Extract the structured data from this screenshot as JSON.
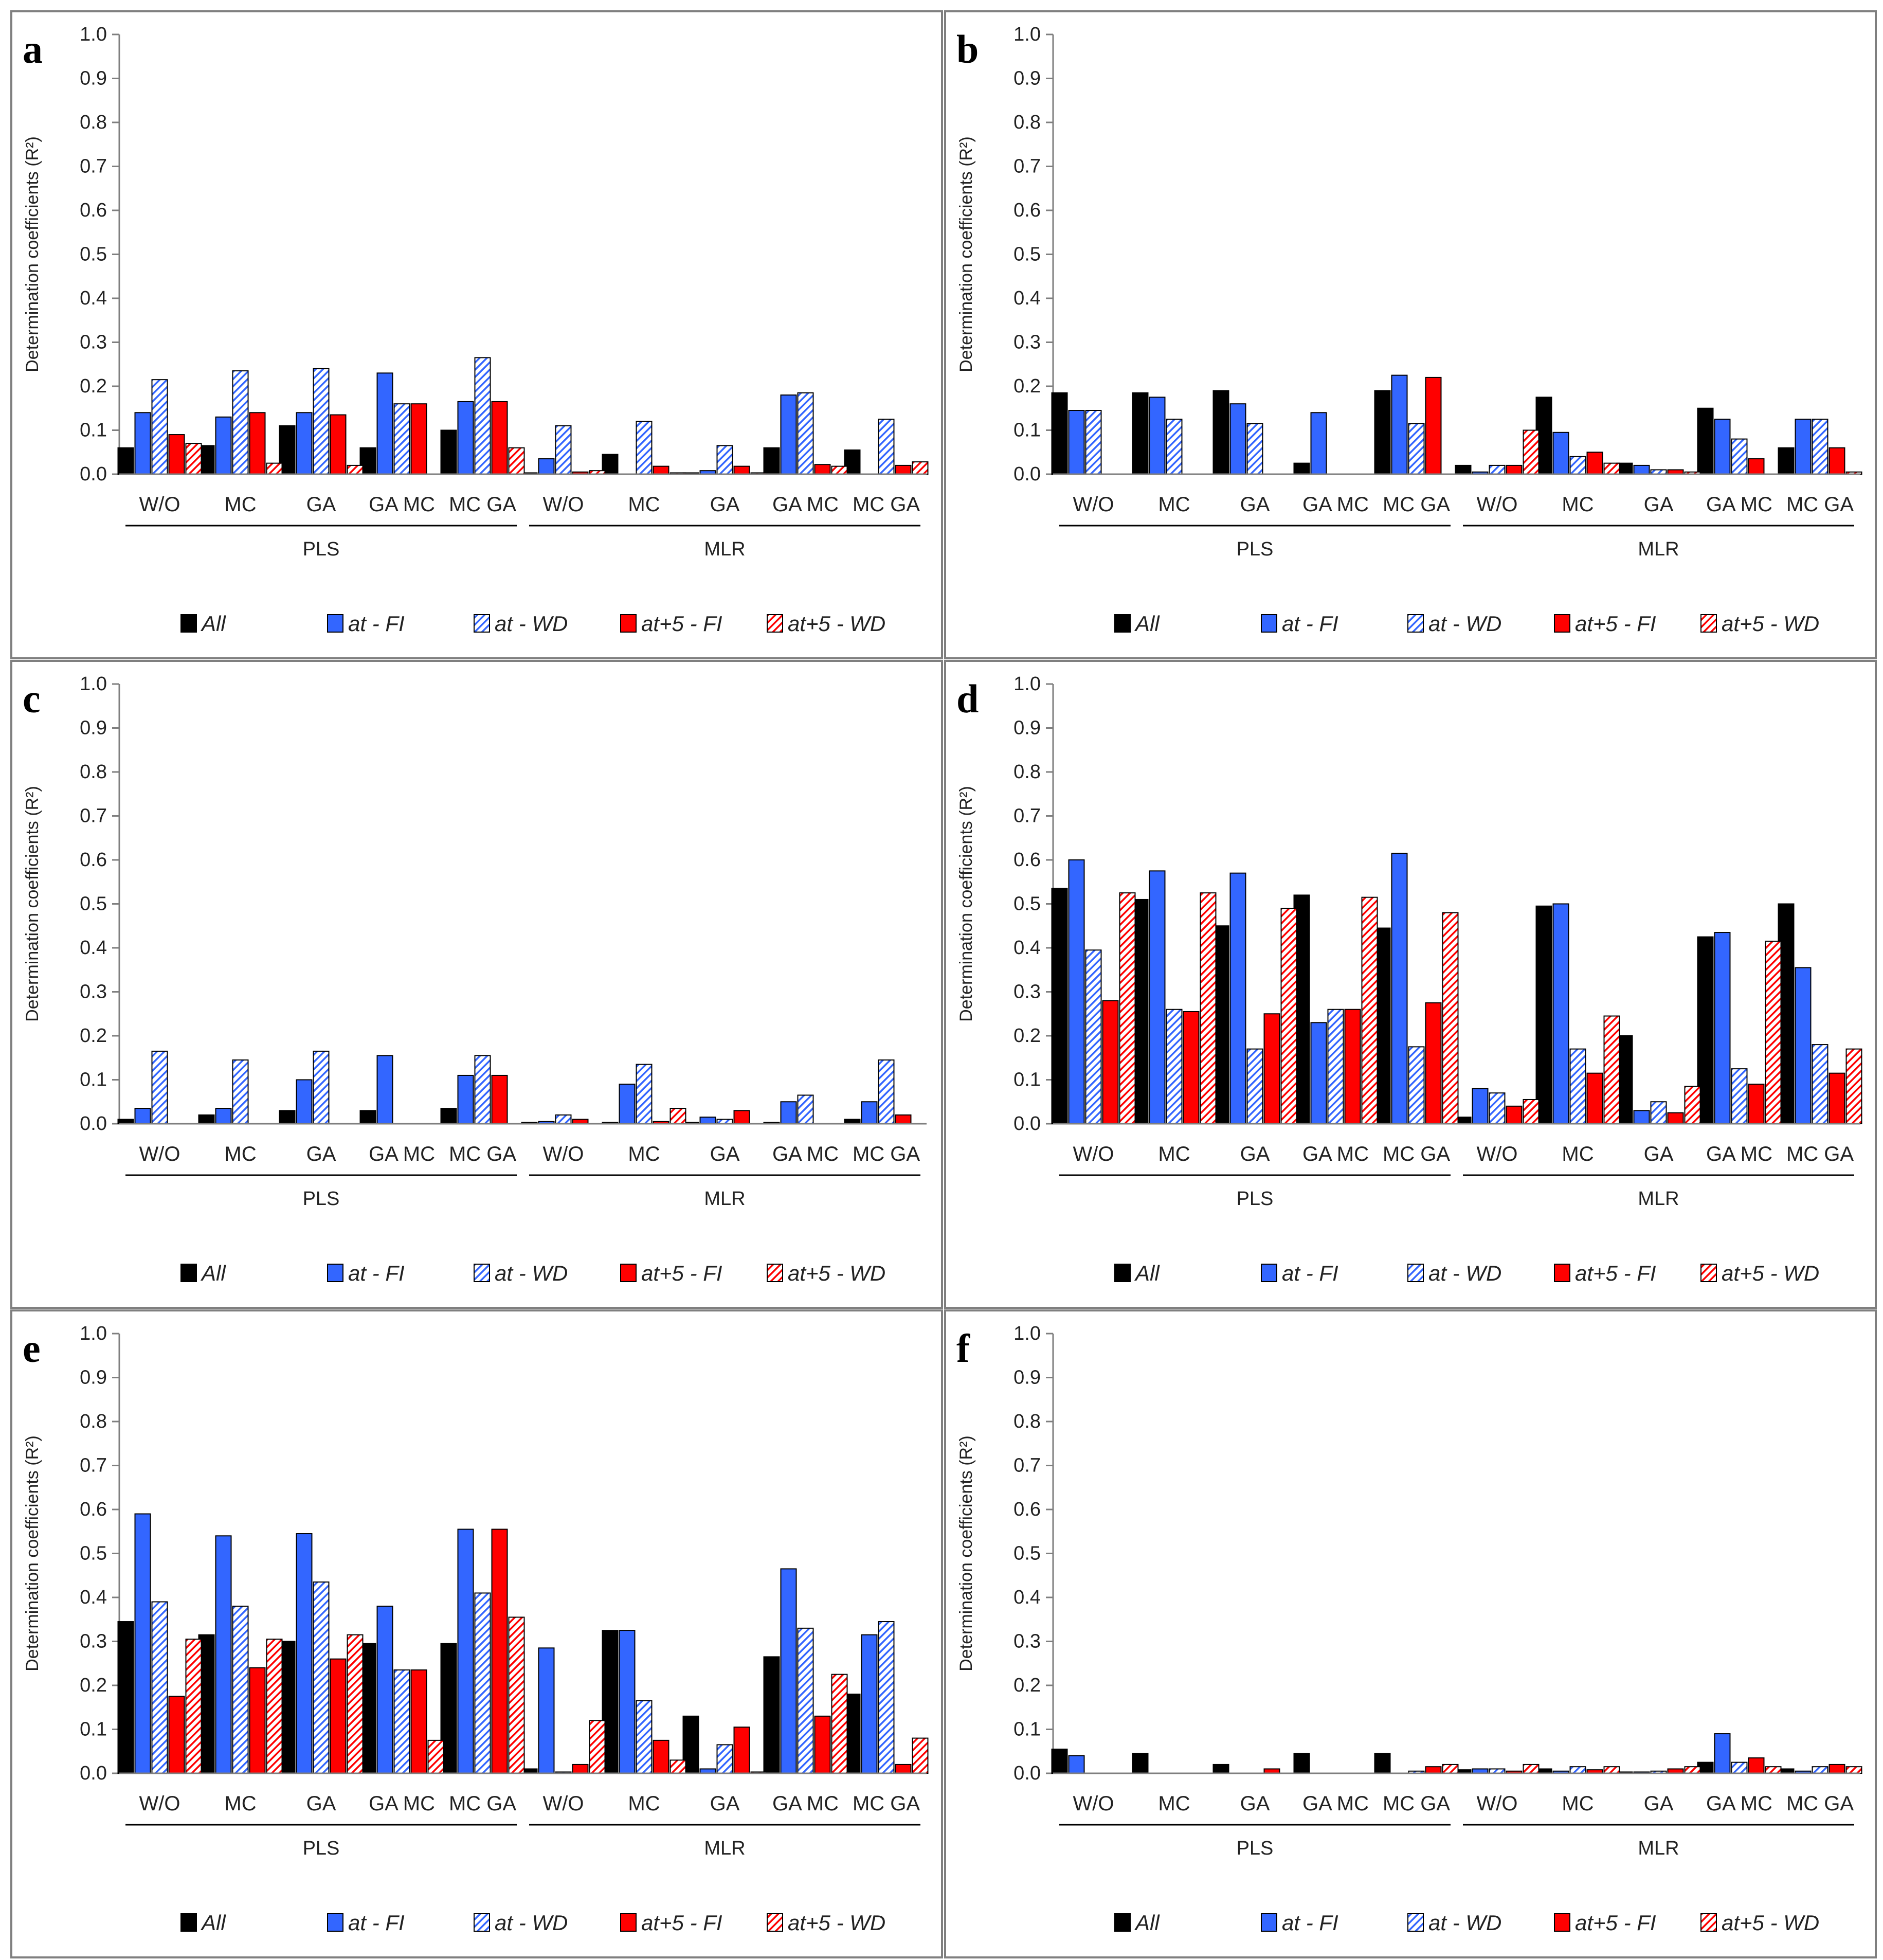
{
  "figure": {
    "colors": {
      "All": "#000000",
      "at - FI": "#3366ff",
      "at - WD": "#3366ff",
      "at+5 - FI": "#ff0000",
      "at+5 - WD": "#ff0000",
      "frame": "#7f7f7f",
      "axis": "#7f7f7f"
    }
  },
  "chart_data": [
    {
      "type": "bar",
      "panel": "a",
      "ylabel": "Determination coefficients (R²)",
      "ylim": [
        0,
        1.0
      ],
      "yticks": [
        "0.0",
        "0.1",
        "0.2",
        "0.3",
        "0.4",
        "0.5",
        "0.6",
        "0.7",
        "0.8",
        "0.9",
        "1.0"
      ],
      "categories": [
        "W/O",
        "MC",
        "GA",
        "GA MC",
        "MC GA",
        "W/O",
        "MC",
        "GA",
        "GA MC",
        "MC GA"
      ],
      "groups": [
        {
          "name": "PLS",
          "count": 5
        },
        {
          "name": "MLR",
          "count": 5
        }
      ],
      "series": [
        {
          "name": "All",
          "pattern": "solid",
          "values": [
            0.06,
            0.065,
            0.11,
            0.06,
            0.1,
            0.003,
            0.045,
            0.003,
            0.06,
            0.055
          ]
        },
        {
          "name": "at - FI",
          "pattern": "solid",
          "values": [
            0.14,
            0.13,
            0.14,
            0.23,
            0.165,
            0.035,
            0.0,
            0.008,
            0.18,
            0.0
          ]
        },
        {
          "name": "at - WD",
          "pattern": "hatch",
          "values": [
            0.215,
            0.235,
            0.24,
            0.16,
            0.265,
            0.11,
            0.12,
            0.065,
            0.185,
            0.125
          ]
        },
        {
          "name": "at+5 - FI",
          "pattern": "solid",
          "values": [
            0.09,
            0.14,
            0.135,
            0.16,
            0.165,
            0.005,
            0.018,
            0.018,
            0.022,
            0.02
          ]
        },
        {
          "name": "at+5 - WD",
          "pattern": "hatch",
          "values": [
            0.07,
            0.025,
            0.02,
            0.0,
            0.06,
            0.008,
            0.003,
            0.003,
            0.018,
            0.028
          ]
        }
      ]
    },
    {
      "type": "bar",
      "panel": "b",
      "ylabel": "Determination coefficients (R²)",
      "ylim": [
        0,
        1.0
      ],
      "yticks": [
        "0.0",
        "0.1",
        "0.2",
        "0.3",
        "0.4",
        "0.5",
        "0.6",
        "0.7",
        "0.8",
        "0.9",
        "1.0"
      ],
      "categories": [
        "W/O",
        "MC",
        "GA",
        "GA MC",
        "MC GA",
        "W/O",
        "MC",
        "GA",
        "GA MC",
        "MC GA"
      ],
      "groups": [
        {
          "name": "PLS",
          "count": 5
        },
        {
          "name": "MLR",
          "count": 5
        }
      ],
      "series": [
        {
          "name": "All",
          "pattern": "solid",
          "values": [
            0.185,
            0.185,
            0.19,
            0.025,
            0.19,
            0.02,
            0.175,
            0.025,
            0.15,
            0.06
          ]
        },
        {
          "name": "at - FI",
          "pattern": "solid",
          "values": [
            0.145,
            0.175,
            0.16,
            0.14,
            0.225,
            0.005,
            0.095,
            0.02,
            0.125,
            0.125
          ]
        },
        {
          "name": "at - WD",
          "pattern": "hatch",
          "values": [
            0.145,
            0.125,
            0.115,
            0.0,
            0.115,
            0.02,
            0.04,
            0.01,
            0.08,
            0.125
          ]
        },
        {
          "name": "at+5 - FI",
          "pattern": "solid",
          "values": [
            0.0,
            0.0,
            0.0,
            0.0,
            0.22,
            0.02,
            0.05,
            0.01,
            0.035,
            0.06
          ]
        },
        {
          "name": "at+5 - WD",
          "pattern": "hatch",
          "values": [
            0.0,
            0.0,
            0.0,
            0.0,
            0.0,
            0.1,
            0.025,
            0.005,
            0.0,
            0.005
          ]
        }
      ]
    },
    {
      "type": "bar",
      "panel": "c",
      "ylabel": "Determination coefficients (R²)",
      "ylim": [
        0,
        1.0
      ],
      "yticks": [
        "0.0",
        "0.1",
        "0.2",
        "0.3",
        "0.4",
        "0.5",
        "0.6",
        "0.7",
        "0.8",
        "0.9",
        "1.0"
      ],
      "categories": [
        "W/O",
        "MC",
        "GA",
        "GA MC",
        "MC GA",
        "W/O",
        "MC",
        "GA",
        "GA MC",
        "MC GA"
      ],
      "groups": [
        {
          "name": "PLS",
          "count": 5
        },
        {
          "name": "MLR",
          "count": 5
        }
      ],
      "series": [
        {
          "name": "All",
          "pattern": "solid",
          "values": [
            0.01,
            0.02,
            0.03,
            0.03,
            0.035,
            0.003,
            0.003,
            0.003,
            0.003,
            0.01
          ]
        },
        {
          "name": "at - FI",
          "pattern": "solid",
          "values": [
            0.035,
            0.035,
            0.1,
            0.155,
            0.11,
            0.005,
            0.09,
            0.015,
            0.05,
            0.05
          ]
        },
        {
          "name": "at - WD",
          "pattern": "hatch",
          "values": [
            0.165,
            0.145,
            0.165,
            0.0,
            0.155,
            0.02,
            0.135,
            0.01,
            0.065,
            0.145
          ]
        },
        {
          "name": "at+5 - FI",
          "pattern": "solid",
          "values": [
            0.0,
            0.0,
            0.0,
            0.0,
            0.11,
            0.01,
            0.005,
            0.03,
            0.0,
            0.02
          ]
        },
        {
          "name": "at+5 - WD",
          "pattern": "hatch",
          "values": [
            0.0,
            0.0,
            0.0,
            0.0,
            0.0,
            0.0,
            0.035,
            0.0,
            0.0,
            0.0
          ]
        }
      ]
    },
    {
      "type": "bar",
      "panel": "d",
      "ylabel": "Determination coefficients (R²)",
      "ylim": [
        0,
        1.0
      ],
      "yticks": [
        "0.0",
        "0.1",
        "0.2",
        "0.3",
        "0.4",
        "0.5",
        "0.6",
        "0.7",
        "0.8",
        "0.9",
        "1.0"
      ],
      "categories": [
        "W/O",
        "MC",
        "GA",
        "GA MC",
        "MC GA",
        "W/O",
        "MC",
        "GA",
        "GA MC",
        "MC GA"
      ],
      "groups": [
        {
          "name": "PLS",
          "count": 5
        },
        {
          "name": "MLR",
          "count": 5
        }
      ],
      "series": [
        {
          "name": "All",
          "pattern": "solid",
          "values": [
            0.535,
            0.51,
            0.45,
            0.52,
            0.445,
            0.015,
            0.495,
            0.2,
            0.425,
            0.5
          ]
        },
        {
          "name": "at - FI",
          "pattern": "solid",
          "values": [
            0.6,
            0.575,
            0.57,
            0.23,
            0.615,
            0.08,
            0.5,
            0.03,
            0.435,
            0.355
          ]
        },
        {
          "name": "at - WD",
          "pattern": "hatch",
          "values": [
            0.395,
            0.26,
            0.17,
            0.26,
            0.175,
            0.07,
            0.17,
            0.05,
            0.125,
            0.18
          ]
        },
        {
          "name": "at+5 - FI",
          "pattern": "solid",
          "values": [
            0.28,
            0.255,
            0.25,
            0.26,
            0.275,
            0.04,
            0.115,
            0.025,
            0.09,
            0.115
          ]
        },
        {
          "name": "at+5 - WD",
          "pattern": "hatch",
          "values": [
            0.525,
            0.525,
            0.49,
            0.515,
            0.48,
            0.055,
            0.245,
            0.085,
            0.415,
            0.17
          ]
        }
      ]
    },
    {
      "type": "bar",
      "panel": "e",
      "ylabel": "Determination coefficients (R²)",
      "ylim": [
        0,
        1.0
      ],
      "yticks": [
        "0.0",
        "0.1",
        "0.2",
        "0.3",
        "0.4",
        "0.5",
        "0.6",
        "0.7",
        "0.8",
        "0.9",
        "1.0"
      ],
      "categories": [
        "W/O",
        "MC",
        "GA",
        "GA MC",
        "MC GA",
        "W/O",
        "MC",
        "GA",
        "GA MC",
        "MC GA"
      ],
      "groups": [
        {
          "name": "PLS",
          "count": 5
        },
        {
          "name": "MLR",
          "count": 5
        }
      ],
      "series": [
        {
          "name": "All",
          "pattern": "solid",
          "values": [
            0.345,
            0.315,
            0.3,
            0.295,
            0.295,
            0.01,
            0.325,
            0.13,
            0.265,
            0.18
          ]
        },
        {
          "name": "at - FI",
          "pattern": "solid",
          "values": [
            0.59,
            0.54,
            0.545,
            0.38,
            0.555,
            0.285,
            0.325,
            0.01,
            0.465,
            0.315
          ]
        },
        {
          "name": "at - WD",
          "pattern": "hatch",
          "values": [
            0.39,
            0.38,
            0.435,
            0.235,
            0.41,
            0.003,
            0.165,
            0.065,
            0.33,
            0.345
          ]
        },
        {
          "name": "at+5 - FI",
          "pattern": "solid",
          "values": [
            0.175,
            0.24,
            0.26,
            0.235,
            0.555,
            0.02,
            0.075,
            0.105,
            0.13,
            0.02
          ]
        },
        {
          "name": "at+5 - WD",
          "pattern": "hatch",
          "values": [
            0.305,
            0.305,
            0.315,
            0.075,
            0.355,
            0.12,
            0.03,
            0.003,
            0.225,
            0.08
          ]
        }
      ]
    },
    {
      "type": "bar",
      "panel": "f",
      "ylabel": "Determination coefficients (R²)",
      "ylim": [
        0,
        1.0
      ],
      "yticks": [
        "0.0",
        "0.1",
        "0.2",
        "0.3",
        "0.4",
        "0.5",
        "0.6",
        "0.7",
        "0.8",
        "0.9",
        "1.0"
      ],
      "categories": [
        "W/O",
        "MC",
        "GA",
        "GA MC",
        "MC GA",
        "W/O",
        "MC",
        "GA",
        "GA MC",
        "MC GA"
      ],
      "groups": [
        {
          "name": "PLS",
          "count": 5
        },
        {
          "name": "MLR",
          "count": 5
        }
      ],
      "series": [
        {
          "name": "All",
          "pattern": "solid",
          "values": [
            0.055,
            0.045,
            0.02,
            0.045,
            0.045,
            0.008,
            0.01,
            0.003,
            0.025,
            0.01
          ]
        },
        {
          "name": "at - FI",
          "pattern": "solid",
          "values": [
            0.04,
            0.0,
            0.0,
            0.0,
            0.0,
            0.01,
            0.005,
            0.003,
            0.09,
            0.005
          ]
        },
        {
          "name": "at - WD",
          "pattern": "hatch",
          "values": [
            0.0,
            0.0,
            0.0,
            0.0,
            0.005,
            0.01,
            0.015,
            0.005,
            0.025,
            0.015
          ]
        },
        {
          "name": "at+5 - FI",
          "pattern": "solid",
          "values": [
            0.0,
            0.0,
            0.01,
            0.0,
            0.015,
            0.005,
            0.008,
            0.01,
            0.035,
            0.02
          ]
        },
        {
          "name": "at+5 - WD",
          "pattern": "hatch",
          "values": [
            0.0,
            0.0,
            0.0,
            0.0,
            0.02,
            0.02,
            0.015,
            0.015,
            0.015,
            0.015
          ]
        }
      ]
    }
  ]
}
